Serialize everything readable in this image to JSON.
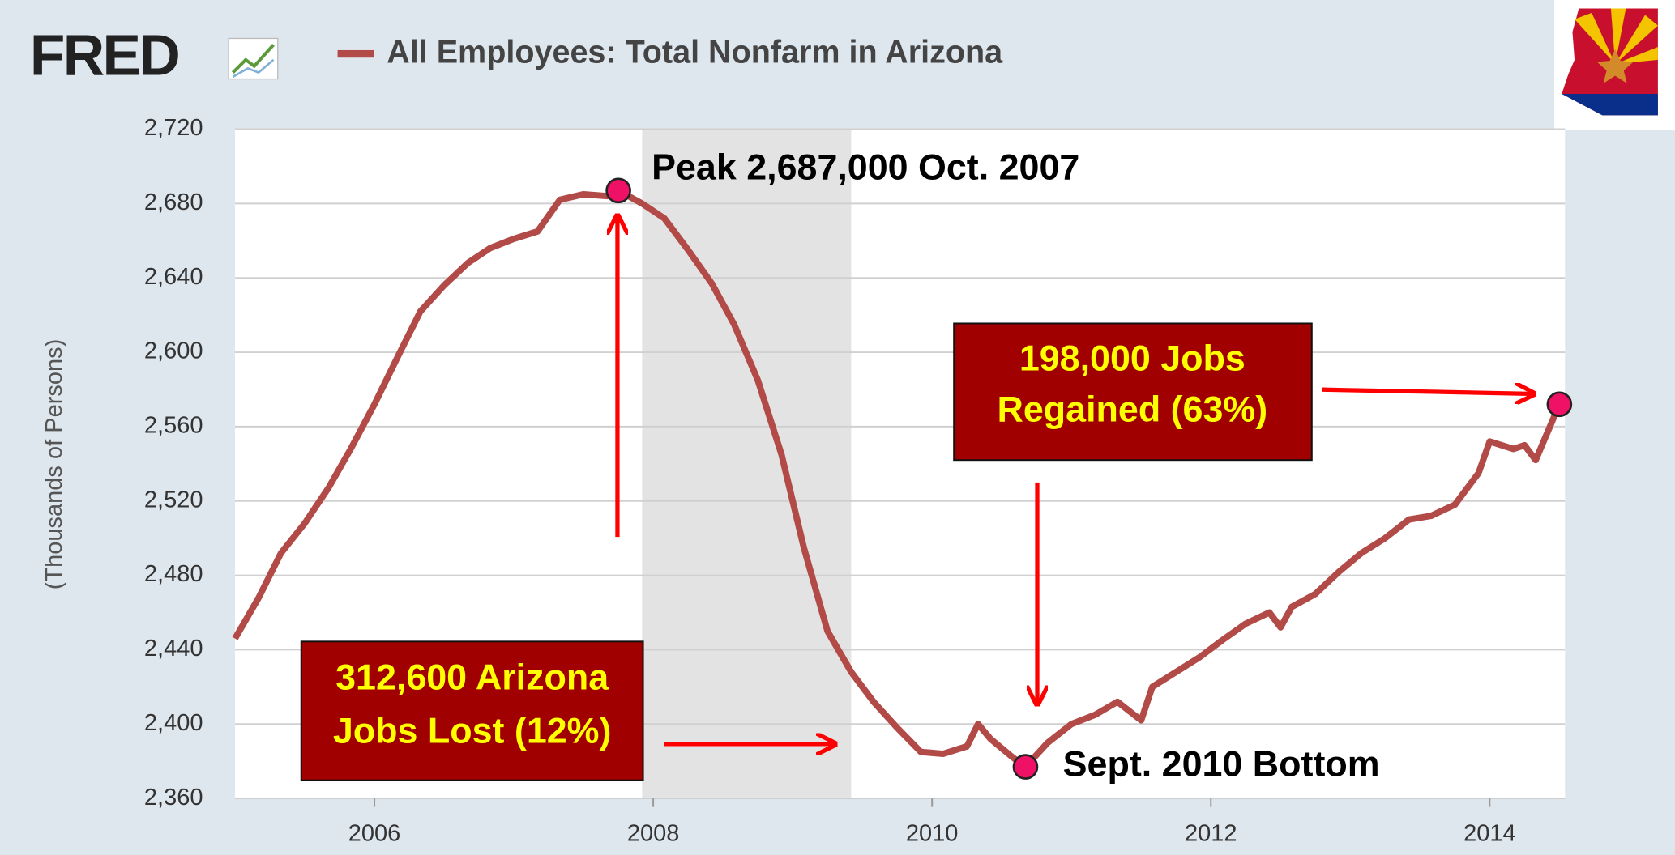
{
  "chart_data": {
    "type": "line",
    "logo": "FRED",
    "title": "All Employees: Total Nonfarm in Arizona",
    "y_label": "(Thousands of Persons)",
    "x": [
      2005.0,
      2005.17,
      2005.33,
      2005.5,
      2005.67,
      2005.83,
      2006.0,
      2006.17,
      2006.33,
      2006.5,
      2006.67,
      2006.83,
      2007.0,
      2007.17,
      2007.33,
      2007.5,
      2007.67,
      2007.75,
      2007.92,
      2008.08,
      2008.25,
      2008.42,
      2008.58,
      2008.75,
      2008.92,
      2009.08,
      2009.25,
      2009.42,
      2009.58,
      2009.75,
      2009.92,
      2010.08,
      2010.25,
      2010.33,
      2010.42,
      2010.58,
      2010.67,
      2010.83,
      2011.0,
      2011.17,
      2011.33,
      2011.5,
      2011.58,
      2011.75,
      2011.92,
      2012.08,
      2012.25,
      2012.42,
      2012.5,
      2012.58,
      2012.75,
      2012.92,
      2013.08,
      2013.25,
      2013.42,
      2013.58,
      2013.75,
      2013.92,
      2014.0,
      2014.17,
      2014.25,
      2014.33,
      2014.5
    ],
    "series": [
      {
        "name": "All Employees: Total Nonfarm in Arizona",
        "color": "#b24a47",
        "values": [
          2446,
          2468,
          2492,
          2508,
          2527,
          2548,
          2572,
          2598,
          2622,
          2636,
          2648,
          2656,
          2661,
          2665,
          2682,
          2685,
          2684,
          2687,
          2680,
          2672,
          2655,
          2637,
          2615,
          2585,
          2545,
          2495,
          2450,
          2428,
          2412,
          2398,
          2385,
          2384,
          2388,
          2400,
          2392,
          2382,
          2377,
          2390,
          2400,
          2405,
          2412,
          2402,
          2420,
          2428,
          2436,
          2445,
          2454,
          2460,
          2452,
          2463,
          2470,
          2482,
          2492,
          2500,
          2510,
          2512,
          2518,
          2535,
          2552,
          2548,
          2550,
          2542,
          2572
        ]
      }
    ],
    "xlim": [
      2005.0,
      2014.54
    ],
    "xticks": [
      2006,
      2008,
      2010,
      2012,
      2014
    ],
    "ylim": [
      2360,
      2720
    ],
    "yticks": [
      {
        "value": 2360,
        "label": "2,360"
      },
      {
        "value": 2400,
        "label": "2,400"
      },
      {
        "value": 2440,
        "label": "2,440"
      },
      {
        "value": 2480,
        "label": "2,480"
      },
      {
        "value": 2520,
        "label": "2,520"
      },
      {
        "value": 2560,
        "label": "2,560"
      },
      {
        "value": 2600,
        "label": "2,600"
      },
      {
        "value": 2640,
        "label": "2,640"
      },
      {
        "value": 2680,
        "label": "2,680"
      },
      {
        "value": 2720,
        "label": "2,720"
      }
    ],
    "grid": true,
    "shaded_period": {
      "x": [
        2007.92,
        2009.42
      ],
      "color": "#e3e3e3"
    },
    "annotations": {
      "peak": "Peak 2,687,000 Oct. 2007",
      "bottom": "Sept. 2010 Bottom",
      "loss": [
        "312,600 Arizona",
        "Jobs Lost (12%)"
      ],
      "gain": [
        "198,000 Jobs",
        "Regained (63%)"
      ]
    }
  }
}
